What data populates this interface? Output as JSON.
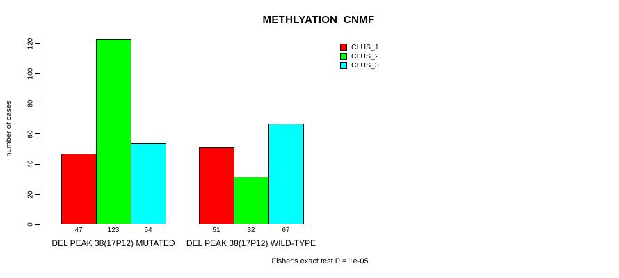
{
  "chart_data": {
    "type": "bar",
    "title": "METHLYATION_CNMF",
    "ylabel": "number of cases",
    "ylim": [
      0,
      120
    ],
    "yticks": [
      0,
      20,
      40,
      60,
      80,
      100,
      120
    ],
    "categories": [
      "DEL PEAK 38(17P12) MUTATED",
      "DEL PEAK 38(17P12) WILD-TYPE"
    ],
    "series": [
      {
        "name": "CLUS_1",
        "color": "#ff0000",
        "values": [
          47,
          51
        ]
      },
      {
        "name": "CLUS_2",
        "color": "#00ff00",
        "values": [
          123,
          32
        ]
      },
      {
        "name": "CLUS_3",
        "color": "#00ffff",
        "values": [
          54,
          67
        ]
      }
    ],
    "bar_value_labels": [
      [
        47,
        123,
        54
      ],
      [
        51,
        32,
        67
      ]
    ],
    "legend_position": "top-right",
    "grid": false,
    "footer": "Fisher's exact test P = 1e-05"
  }
}
